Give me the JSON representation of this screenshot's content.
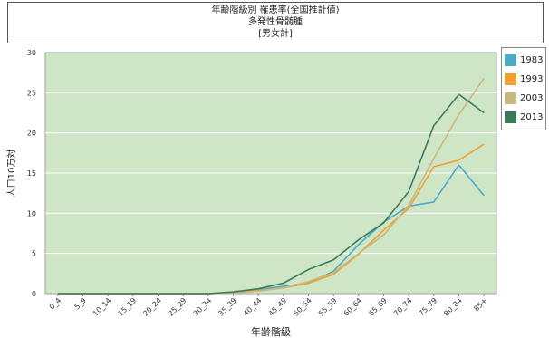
{
  "title": {
    "line1": "年齢階級別 罹患率(全国推計値)",
    "line2": "多発性骨髄腫",
    "line3": "[男女計]"
  },
  "chart_data": {
    "type": "line",
    "title": "年齢階級別 罹患率(全国推計値) 多発性骨髄腫 [男女計]",
    "xlabel": "年齢階級",
    "ylabel": "人口10万対",
    "ylim": [
      0,
      30
    ],
    "yticks": [
      0,
      5,
      10,
      15,
      20,
      25,
      30
    ],
    "grid": true,
    "legend_position": "right",
    "categories": [
      "0_4",
      "5_9",
      "10_14",
      "15_19",
      "20_24",
      "25_29",
      "30_34",
      "35_39",
      "40_44",
      "45_49",
      "50_54",
      "55_59",
      "60_64",
      "65_69",
      "70_74",
      "75_79",
      "80_84",
      "85+"
    ],
    "series": [
      {
        "name": "1983",
        "color": "#4aaac8",
        "values": [
          0,
          0,
          0,
          0,
          0,
          0,
          0,
          0.1,
          0.5,
          0.9,
          1.3,
          2.8,
          6.1,
          8.9,
          10.9,
          11.4,
          16.0,
          12.2
        ]
      },
      {
        "name": "1993",
        "color": "#f0a030",
        "values": [
          0,
          0,
          0,
          0,
          0,
          0,
          0,
          0.1,
          0.4,
          0.7,
          1.3,
          2.4,
          4.9,
          7.9,
          10.6,
          15.8,
          16.6,
          18.6
        ]
      },
      {
        "name": "2003",
        "color": "#c8b880",
        "values": [
          0,
          0,
          0,
          0,
          0,
          0,
          0,
          0.1,
          0.3,
          0.7,
          1.5,
          2.6,
          5.0,
          7.3,
          11.0,
          16.8,
          22.3,
          26.8
        ]
      },
      {
        "name": "2013",
        "color": "#3a7a5a",
        "values": [
          0,
          0,
          0,
          0,
          0,
          0,
          0,
          0.2,
          0.6,
          1.3,
          3.0,
          4.2,
          6.7,
          8.8,
          12.7,
          20.9,
          24.8,
          22.5
        ]
      }
    ]
  }
}
